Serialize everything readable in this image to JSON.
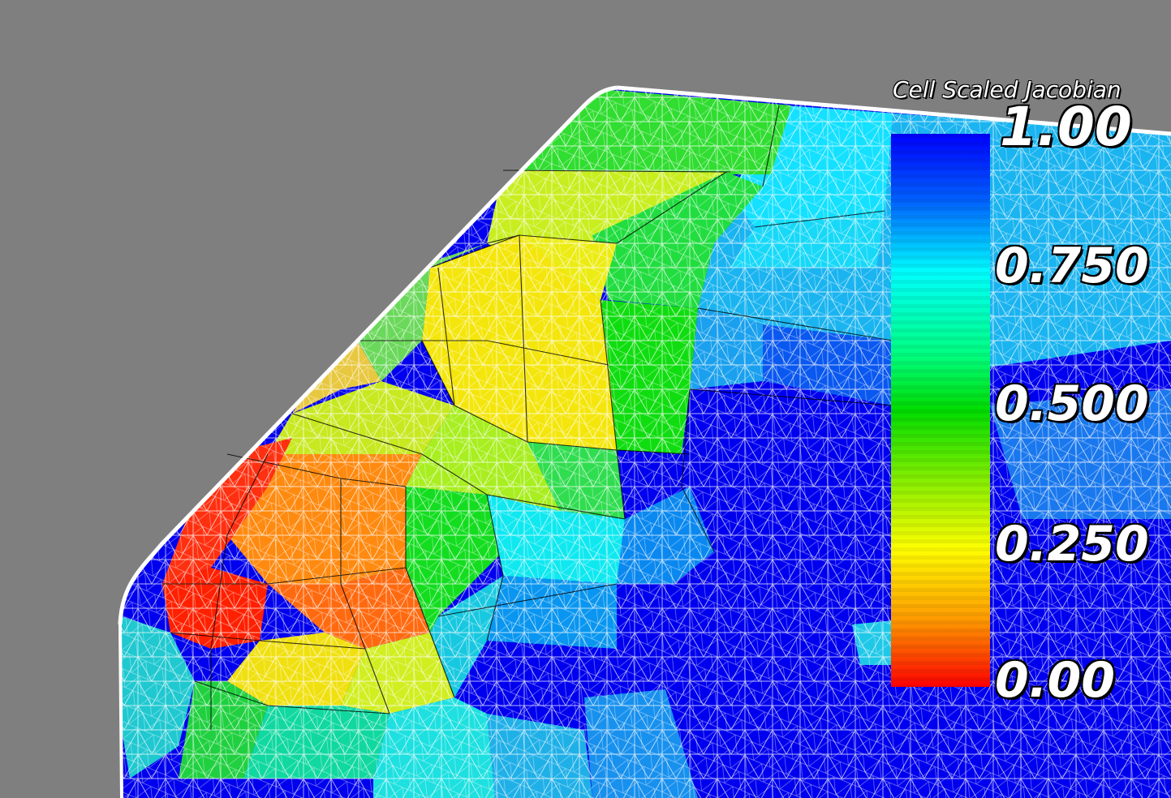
{
  "scalar_bar": {
    "title": "Cell Scaled Jacobian",
    "labels": [
      "1.00",
      "0.750",
      "0.500",
      "0.250",
      "0.00"
    ],
    "range": [
      0,
      1
    ],
    "colormap": [
      "#ff0000",
      "#ff9900",
      "#ffff00",
      "#80ee00",
      "#00dd00",
      "#00ff80",
      "#00ffff",
      "#0060ff",
      "#0000ff"
    ]
  },
  "scene": {
    "background_color": "#7f7f7f",
    "wireframe_color": "#ffffff",
    "cell_edge_color": "#000000"
  }
}
